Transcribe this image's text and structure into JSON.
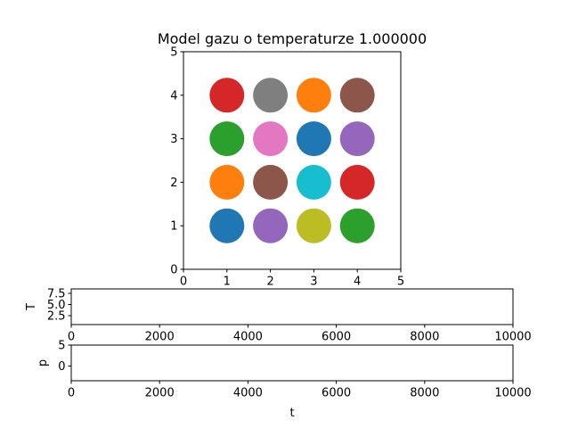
{
  "chart_data": [
    {
      "type": "scatter",
      "title": "Model gazu o temperaturze 1.000000",
      "xlabel": "",
      "ylabel": "",
      "xlim": [
        0,
        5
      ],
      "ylim": [
        0,
        5
      ],
      "xticks": [
        0,
        1,
        2,
        3,
        4,
        5
      ],
      "yticks": [
        0,
        1,
        2,
        3,
        4,
        5
      ],
      "grid": false,
      "points": [
        {
          "x": 1,
          "y": 4,
          "color": "#d62728"
        },
        {
          "x": 2,
          "y": 4,
          "color": "#7f7f7f"
        },
        {
          "x": 3,
          "y": 4,
          "color": "#ff7f0e"
        },
        {
          "x": 4,
          "y": 4,
          "color": "#8c564b"
        },
        {
          "x": 1,
          "y": 3,
          "color": "#2ca02c"
        },
        {
          "x": 2,
          "y": 3,
          "color": "#e377c2"
        },
        {
          "x": 3,
          "y": 3,
          "color": "#1f77b4"
        },
        {
          "x": 4,
          "y": 3,
          "color": "#9467bd"
        },
        {
          "x": 1,
          "y": 2,
          "color": "#ff7f0e"
        },
        {
          "x": 2,
          "y": 2,
          "color": "#8c564b"
        },
        {
          "x": 3,
          "y": 2,
          "color": "#17becf"
        },
        {
          "x": 4,
          "y": 2,
          "color": "#d62728"
        },
        {
          "x": 1,
          "y": 1,
          "color": "#1f77b4"
        },
        {
          "x": 2,
          "y": 1,
          "color": "#9467bd"
        },
        {
          "x": 3,
          "y": 1,
          "color": "#bcbd22"
        },
        {
          "x": 4,
          "y": 1,
          "color": "#2ca02c"
        }
      ]
    },
    {
      "type": "line",
      "title": "",
      "xlabel": "",
      "ylabel": "T",
      "xlim": [
        0,
        10000
      ],
      "ylim": [
        0.5,
        8.5
      ],
      "xticks": [
        0,
        2000,
        4000,
        6000,
        8000,
        10000
      ],
      "yticks": [
        "2.5",
        "5.0",
        "7.5"
      ],
      "series": []
    },
    {
      "type": "line",
      "title": "",
      "xlabel": "t",
      "ylabel": "p",
      "xlim": [
        0,
        10000
      ],
      "ylim": [
        -3.5,
        5
      ],
      "xticks": [
        0,
        2000,
        4000,
        6000,
        8000,
        10000
      ],
      "yticks": [
        "0",
        "5"
      ],
      "series": []
    }
  ]
}
